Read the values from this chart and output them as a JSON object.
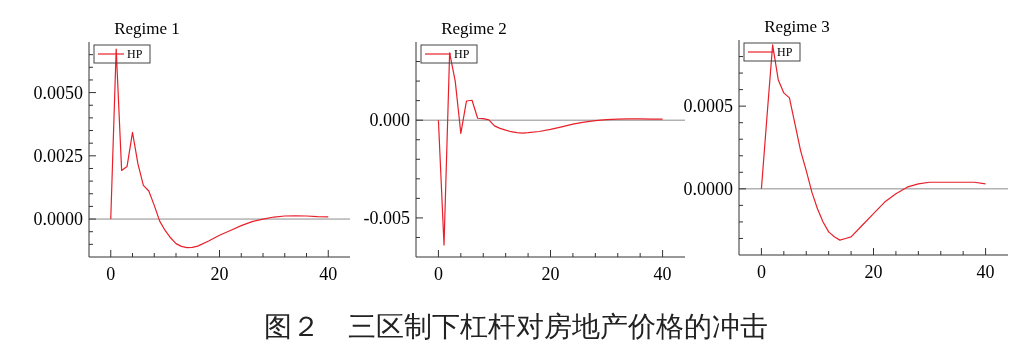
{
  "chart_data": [
    {
      "type": "line",
      "title": "Regime 1",
      "x": [
        0,
        1,
        2,
        3,
        4,
        5,
        6,
        7,
        8,
        9,
        10,
        11,
        12,
        13,
        14,
        15,
        16,
        18,
        20,
        22,
        24,
        26,
        28,
        30,
        32,
        34,
        36,
        38,
        40
      ],
      "series": [
        {
          "name": "HP",
          "color": "#e8202a",
          "values": [
            0,
            0.00672,
            0.00192,
            0.00208,
            0.00343,
            0.00218,
            0.00133,
            0.00111,
            0.00054,
            -8e-05,
            -0.00045,
            -0.00074,
            -0.00097,
            -0.00108,
            -0.00113,
            -0.00112,
            -0.00107,
            -0.00087,
            -0.00064,
            -0.00045,
            -0.00026,
            -0.0001,
            0,
            8e-05,
            0.00012,
            0.00013,
            0.00012,
            0.0001,
            9e-05
          ]
        }
      ],
      "xlim": [
        -4,
        44
      ],
      "xticks": [
        0,
        {
          "value": 4,
          "label": null
        },
        {
          "value": 8,
          "label": null
        },
        {
          "value": 12,
          "label": null
        },
        {
          "value": 16,
          "label": null
        },
        20,
        {
          "value": 24,
          "label": null
        },
        {
          "value": 28,
          "label": null
        },
        {
          "value": 32,
          "label": null
        },
        {
          "value": 36,
          "label": null
        },
        40
      ],
      "ylim": [
        -0.0015,
        0.007
      ],
      "yticks": [
        {
          "value": -0.001,
          "label": null
        },
        {
          "value": -0.0005,
          "label": null
        },
        {
          "value": 0,
          "label": "0.0000"
        },
        {
          "value": 0.0005,
          "label": null
        },
        {
          "value": 0.001,
          "label": null
        },
        {
          "value": 0.0015,
          "label": null
        },
        {
          "value": 0.002,
          "label": null
        },
        {
          "value": 0.0025,
          "label": "0.0025"
        },
        {
          "value": 0.003,
          "label": null
        },
        {
          "value": 0.0035,
          "label": null
        },
        {
          "value": 0.004,
          "label": null
        },
        {
          "value": 0.0045,
          "label": null
        },
        {
          "value": 0.005,
          "label": "0.0050"
        },
        {
          "value": 0.0055,
          "label": null
        },
        {
          "value": 0.006,
          "label": null
        },
        {
          "value": 0.0065,
          "label": null
        }
      ],
      "ref_lines": [
        {
          "axis": "y",
          "value": 0,
          "color": "#8c8c8c"
        }
      ],
      "legend": "top left",
      "annotations": [
        "图２　三区制下杠杆对房地产价格的冲击"
      ]
    },
    {
      "type": "line",
      "title": "Regime 2",
      "x": [
        0,
        1,
        2,
        3,
        4,
        5,
        6,
        7,
        8,
        9,
        10,
        11,
        12,
        13,
        14,
        15,
        16,
        18,
        20,
        22,
        24,
        26,
        28,
        30,
        32,
        34,
        36,
        38,
        40
      ],
      "series": [
        {
          "name": "HP",
          "color": "#e8202a",
          "values": [
            0,
            -0.00639,
            0.00344,
            0.002,
            -0.00068,
            0.00098,
            0.00102,
            0.0001,
            8e-05,
            2e-05,
            -0.00029,
            -0.00042,
            -0.00051,
            -0.00059,
            -0.00064,
            -0.00066,
            -0.00064,
            -0.00058,
            -0.00047,
            -0.00034,
            -0.0002,
            -0.0001,
            -2e-05,
            3e-05,
            5e-05,
            7e-05,
            7e-05,
            5e-05,
            5e-05
          ]
        }
      ],
      "xlim": [
        -4,
        44
      ],
      "xticks": [
        0,
        {
          "value": 4,
          "label": null
        },
        {
          "value": 8,
          "label": null
        },
        {
          "value": 12,
          "label": null
        },
        {
          "value": 16,
          "label": null
        },
        20,
        {
          "value": 24,
          "label": null
        },
        {
          "value": 28,
          "label": null
        },
        {
          "value": 32,
          "label": null
        },
        {
          "value": 36,
          "label": null
        },
        40
      ],
      "ylim": [
        -0.007,
        0.004
      ],
      "yticks": [
        {
          "value": -0.006,
          "label": null
        },
        {
          "value": -0.005,
          "label": "-0.005"
        },
        {
          "value": -0.004,
          "label": null
        },
        {
          "value": -0.003,
          "label": null
        },
        {
          "value": -0.002,
          "label": null
        },
        {
          "value": -0.001,
          "label": null
        },
        {
          "value": 0,
          "label": "0.000"
        },
        {
          "value": 0.001,
          "label": null
        },
        {
          "value": 0.002,
          "label": null
        },
        {
          "value": 0.003,
          "label": null
        }
      ],
      "ref_lines": [
        {
          "axis": "y",
          "value": 0,
          "color": "#8c8c8c"
        }
      ],
      "legend": "top left"
    },
    {
      "type": "line",
      "title": "Regime 3",
      "x": [
        0,
        1,
        2,
        3,
        4,
        5,
        6,
        7,
        8,
        9,
        10,
        11,
        12,
        13,
        14,
        15,
        16,
        18,
        20,
        22,
        24,
        26,
        28,
        30,
        32,
        34,
        36,
        38,
        40
      ],
      "series": [
        {
          "name": "HP",
          "color": "#e8202a",
          "values": [
            0,
            0.00044,
            0.00087,
            0.00066,
            0.00058,
            0.00055,
            0.00039,
            0.00023,
            0.00011,
            -2e-05,
            -0.00012,
            -0.0002,
            -0.00026,
            -0.00029,
            -0.00031,
            -0.0003,
            -0.00029,
            -0.00022,
            -0.00015,
            -8e-05,
            -3e-05,
            1e-05,
            3e-05,
            4e-05,
            4e-05,
            4e-05,
            4e-05,
            4e-05,
            3e-05
          ]
        }
      ],
      "xlim": [
        -4,
        44
      ],
      "xticks": [
        0,
        {
          "value": 4,
          "label": null
        },
        {
          "value": 8,
          "label": null
        },
        {
          "value": 12,
          "label": null
        },
        {
          "value": 16,
          "label": null
        },
        20,
        {
          "value": 24,
          "label": null
        },
        {
          "value": 28,
          "label": null
        },
        {
          "value": 32,
          "label": null
        },
        {
          "value": 36,
          "label": null
        },
        40
      ],
      "ylim": [
        -0.0004,
        0.0009
      ],
      "yticks": [
        {
          "value": -0.0003,
          "label": null
        },
        {
          "value": -0.0002,
          "label": null
        },
        {
          "value": -0.0001,
          "label": null
        },
        {
          "value": 0,
          "label": "0.0000"
        },
        {
          "value": 0.0001,
          "label": null
        },
        {
          "value": 0.0002,
          "label": null
        },
        {
          "value": 0.0003,
          "label": null
        },
        {
          "value": 0.0004,
          "label": null
        },
        {
          "value": 0.0005,
          "label": "0.0005"
        },
        {
          "value": 0.0006,
          "label": null
        },
        {
          "value": 0.0007,
          "label": null
        },
        {
          "value": 0.0008,
          "label": null
        }
      ],
      "ref_lines": [
        {
          "axis": "y",
          "value": 0,
          "color": "#8c8c8c"
        }
      ],
      "legend": "top left"
    }
  ]
}
